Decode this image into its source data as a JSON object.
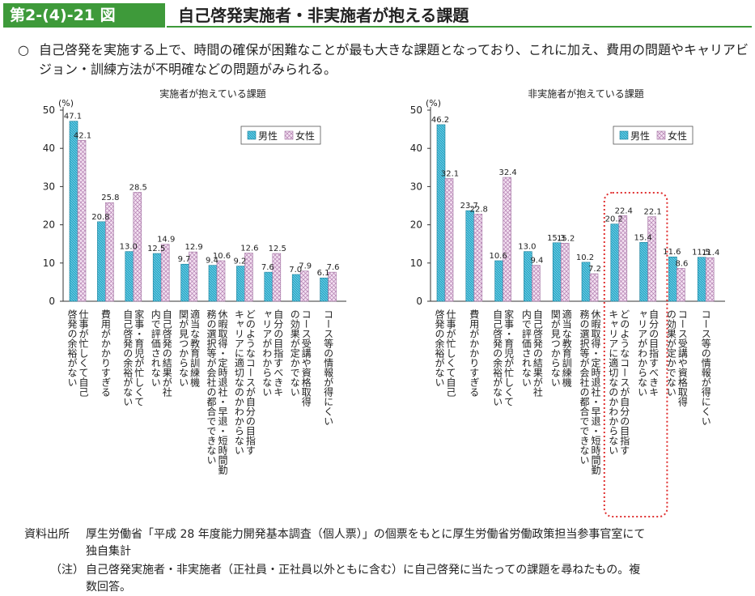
{
  "figure": {
    "label": "第2-(4)-21 図",
    "title": "自己啓発実施者・非実施者が抱える課題"
  },
  "summary": {
    "marker": "○",
    "text": "自己啓発を実施する上で、時間の確保が困難なことが最も大きな課題となっており、これに加え、費用の問題やキャリアビジョン・訓練方法が不明確などの問題がみられる。"
  },
  "colors": {
    "accent": "#3e9a3a",
    "male": "#2aa9c9",
    "female": "#e9c8e6",
    "highlight": "#e03030"
  },
  "chart_data": [
    {
      "type": "bar",
      "title": "実施者が抱えている課題",
      "ylabel": "(%)",
      "ylim": [
        0,
        50
      ],
      "yticks": [
        0,
        10,
        20,
        30,
        40,
        50
      ],
      "legend": [
        "男性",
        "女性"
      ],
      "categories": [
        "仕事が忙しくて自己啓発の余裕がない",
        "費用がかかりすぎる",
        "家事・育児が忙しくて自己啓発の余裕がない",
        "自己啓発の結果が社内で評価されない",
        "適当な教育訓練機関が見つからない",
        "休暇取得・定時退社・早退・短時間勤務の選択等が会社の都合でできない",
        "どのようなコースが自分の目指すキャリアに適切なのかわからない",
        "自分の目指すべきキャリアがわからない",
        "コース受講や資格取得の効果が定かでない",
        "コース等の情報が得にくい"
      ],
      "series": [
        {
          "name": "男性",
          "values": [
            47.1,
            20.8,
            13.0,
            12.5,
            9.7,
            9.4,
            9.2,
            7.6,
            7.0,
            6.1
          ]
        },
        {
          "name": "女性",
          "values": [
            42.1,
            25.8,
            28.5,
            14.9,
            12.9,
            10.6,
            12.6,
            12.5,
            7.9,
            7.6
          ]
        }
      ]
    },
    {
      "type": "bar",
      "title": "非実施者が抱えている課題",
      "ylabel": "(%)",
      "ylim": [
        0,
        50
      ],
      "yticks": [
        0,
        10,
        20,
        30,
        40,
        50
      ],
      "legend": [
        "男性",
        "女性"
      ],
      "highlight_categories": [
        6,
        7
      ],
      "categories": [
        "仕事が忙しくて自己啓発の余裕がない",
        "費用がかかりすぎる",
        "家事・育児が忙しくて自己啓発の余裕がない",
        "自己啓発の結果が社内で評価されない",
        "適当な教育訓練機関が見つからない",
        "休暇取得・定時退社・早退・短時間勤務の選択等が会社の都合でできない",
        "どのようなコースが自分の目指すキャリアに適切なのかわからない",
        "自分の目指すべきキャリアがわからない",
        "コース受講や資格取得の効果が定かでない",
        "コース等の情報が得にくい"
      ],
      "series": [
        {
          "name": "男性",
          "values": [
            46.2,
            23.7,
            10.6,
            13.0,
            15.3,
            10.2,
            20.2,
            15.4,
            11.6,
            11.5
          ]
        },
        {
          "name": "女性",
          "values": [
            32.1,
            22.8,
            32.4,
            9.4,
            15.2,
            7.2,
            22.4,
            22.1,
            8.6,
            11.4
          ]
        }
      ]
    }
  ],
  "notes": {
    "source_label": "資料出所",
    "source_text": "厚生労働省「平成 28 年度能力開発基本調査（個人票）」の個票をもとに厚生労働省労働政策担当参事官室にて",
    "source_text2": "独自集計",
    "note_label": "（注）",
    "note_text": "自己啓発実施者・非実施者（正社員・正社員以外ともに含む）に自己啓発に当たっての課題を尋ねたもの。複",
    "note_text2": "数回答。"
  }
}
